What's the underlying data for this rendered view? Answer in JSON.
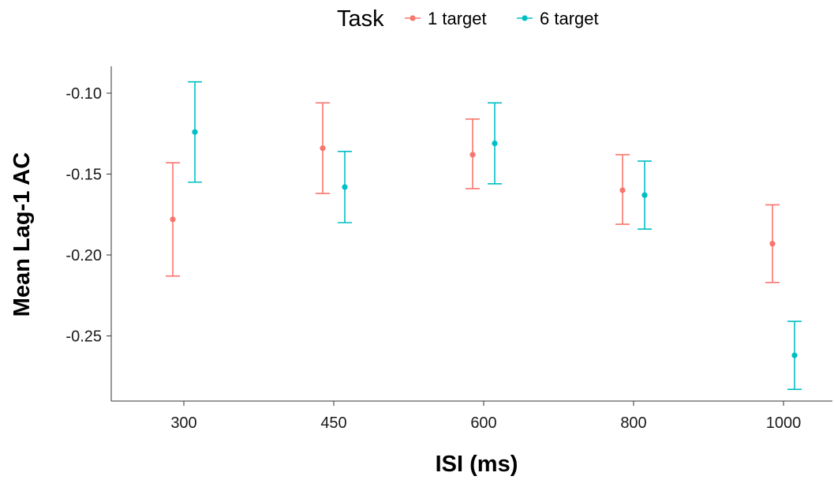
{
  "chart_data": {
    "type": "scatter",
    "categories": [
      "300",
      "450",
      "600",
      "800",
      "1000"
    ],
    "xlabel": "ISI (ms)",
    "ylabel": "Mean Lag-1 AC",
    "ylim": [
      -0.29,
      -0.085
    ],
    "yticks": [
      -0.1,
      -0.15,
      -0.2,
      -0.25
    ],
    "ytick_labels": [
      "-0.10",
      "-0.15",
      "-0.20",
      "-0.25"
    ],
    "grid": false,
    "legend": {
      "title": "Task",
      "position": "top"
    },
    "series": [
      {
        "name": "1 target",
        "color": "#F8766D",
        "values": [
          -0.178,
          -0.134,
          -0.138,
          -0.16,
          -0.193
        ],
        "lower": [
          -0.213,
          -0.162,
          -0.159,
          -0.181,
          -0.217
        ],
        "upper": [
          -0.143,
          -0.106,
          -0.116,
          -0.138,
          -0.169
        ]
      },
      {
        "name": "6 target",
        "color": "#00BFC4",
        "values": [
          -0.124,
          -0.158,
          -0.131,
          -0.163,
          -0.262
        ],
        "lower": [
          -0.155,
          -0.18,
          -0.156,
          -0.184,
          -0.283
        ],
        "upper": [
          -0.093,
          -0.136,
          -0.106,
          -0.142,
          -0.241
        ]
      }
    ]
  }
}
